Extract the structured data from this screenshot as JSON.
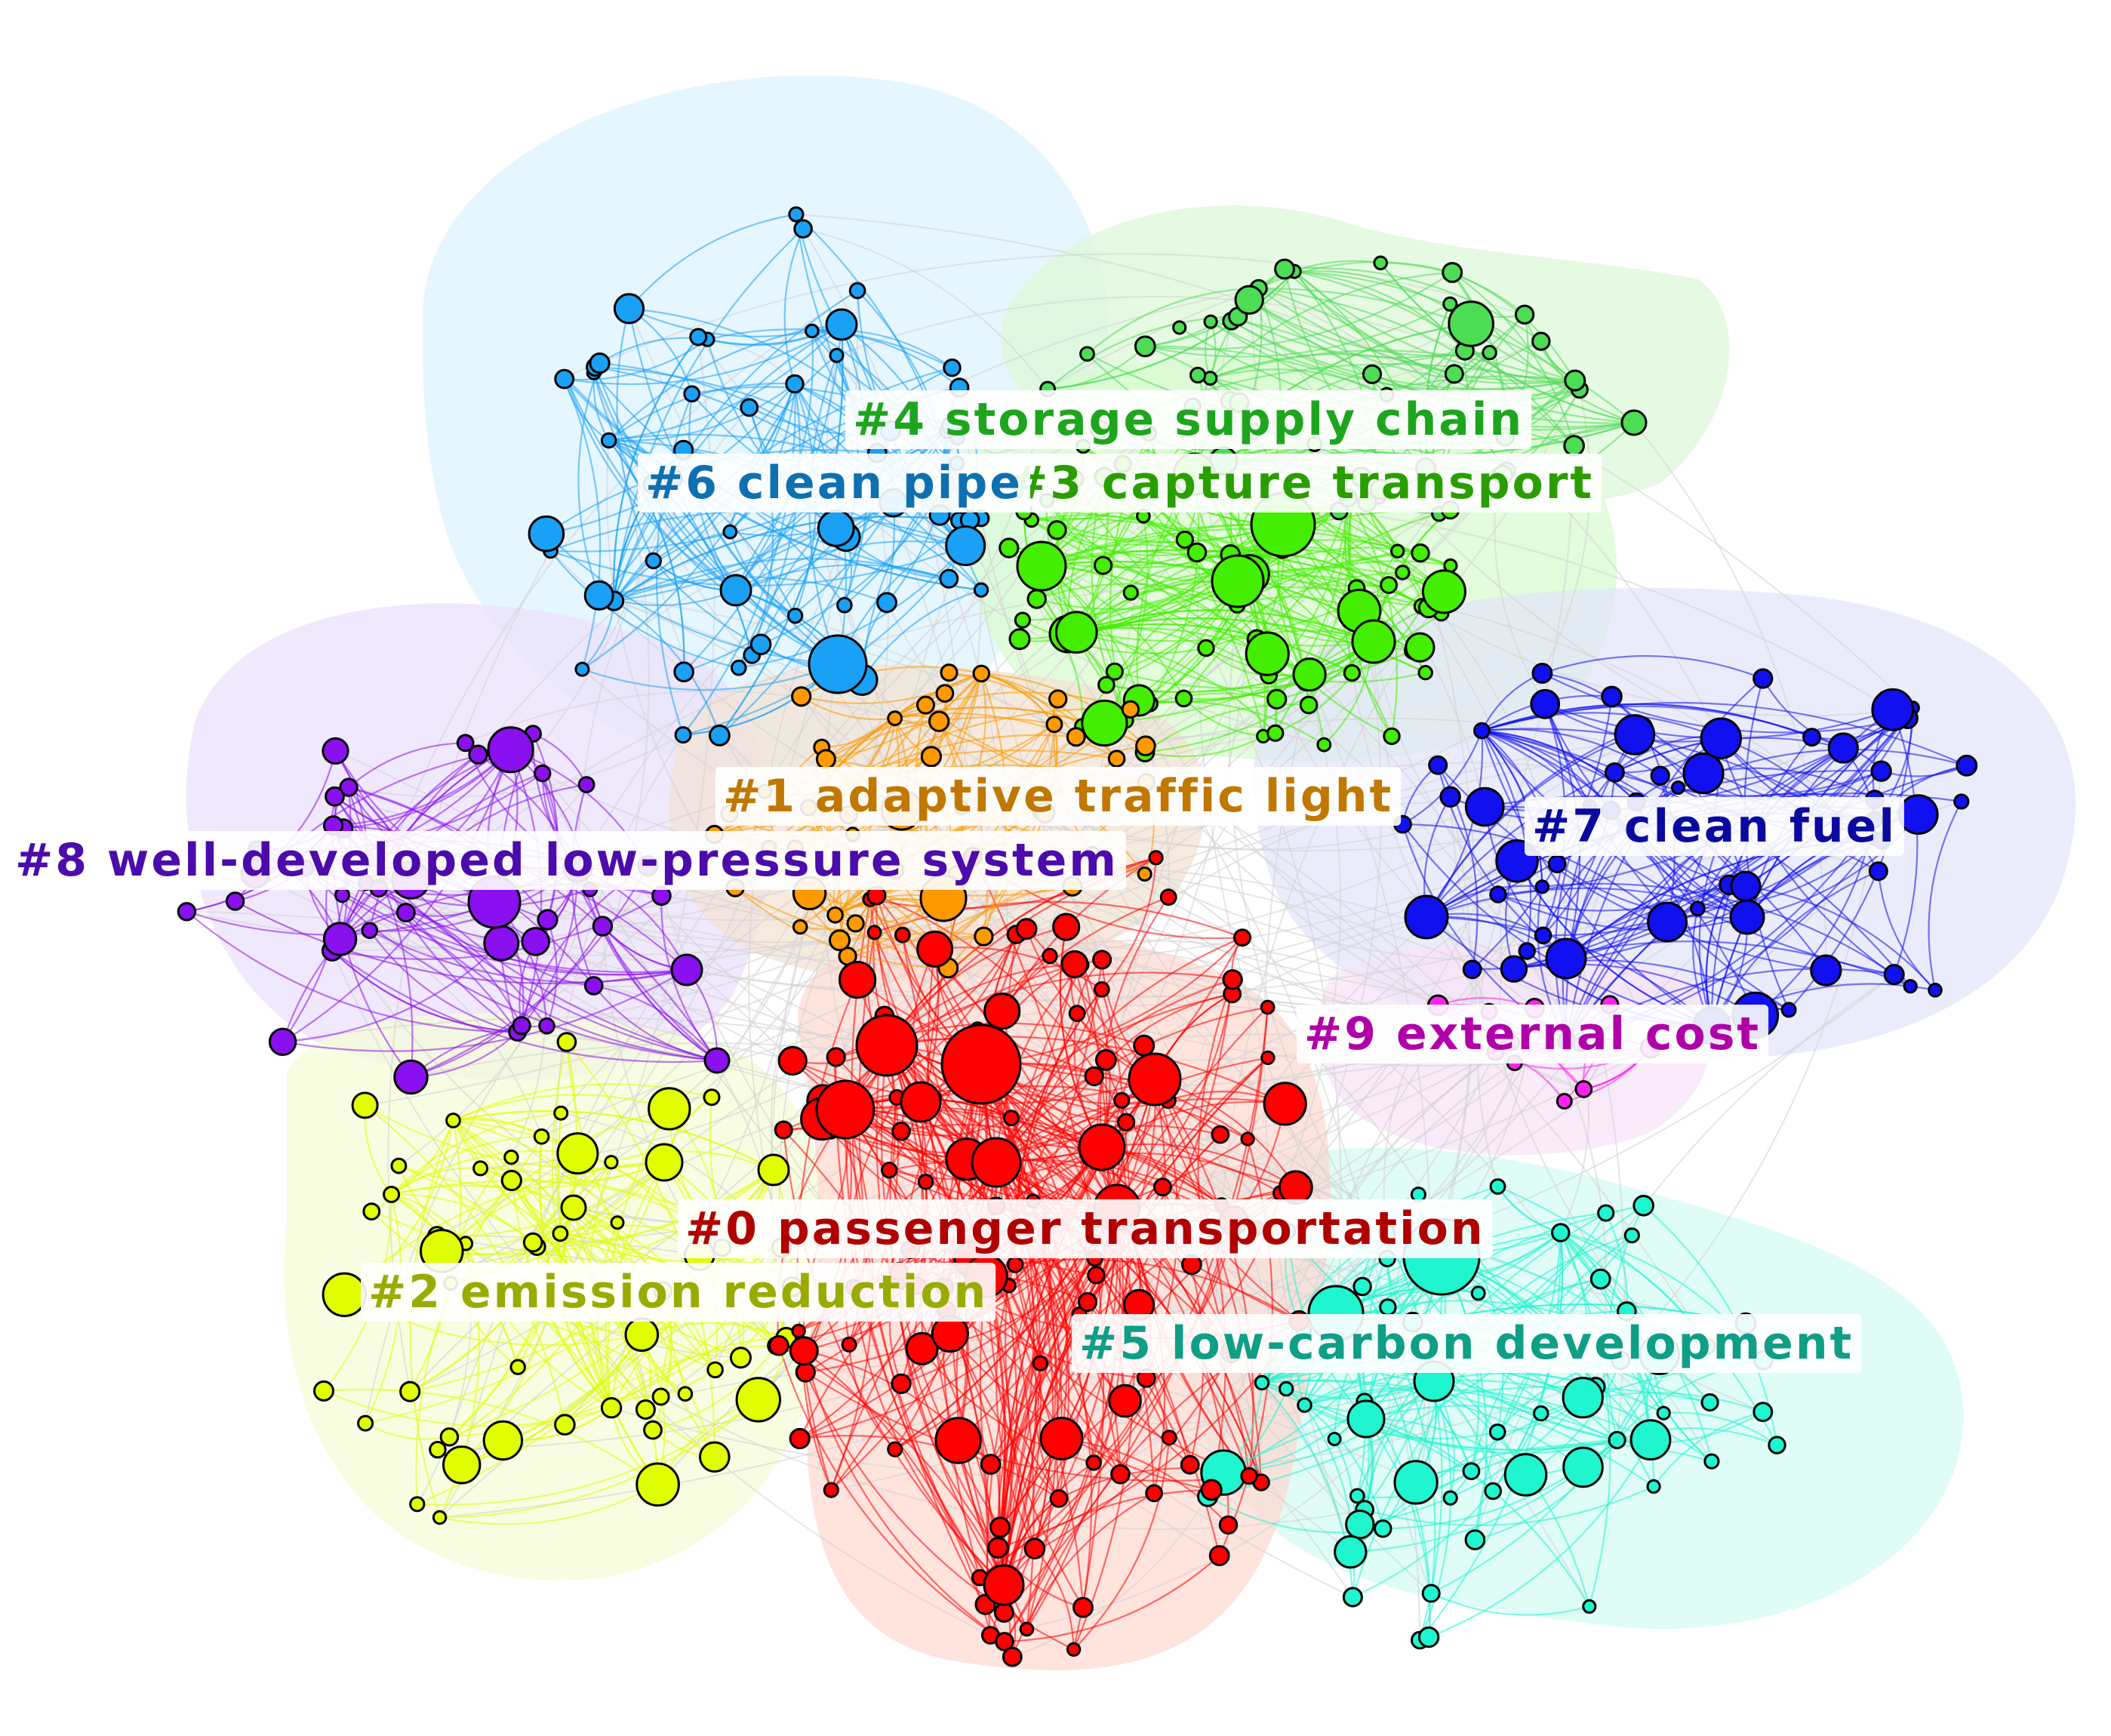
{
  "clusters": [
    {
      "id": 0,
      "label": "#0 passenger transportation",
      "node_color": "#ff0000",
      "label_color": "#b00000",
      "hull_color": "#ffd9d2"
    },
    {
      "id": 1,
      "label": "#1 adaptive traffic light",
      "node_color": "#ff9900",
      "label_color": "#c07800",
      "hull_color": "#f3e3d4"
    },
    {
      "id": 2,
      "label": "#2 emission reduction",
      "node_color": "#e0ff00",
      "label_color": "#9aab00",
      "hull_color": "#f6fcd8"
    },
    {
      "id": 3,
      "label": "#3 capture transport",
      "node_color": "#44ee00",
      "label_color": "#2a9e00",
      "hull_color": "#d8fbd0"
    },
    {
      "id": 4,
      "label": "#4 storage supply chain",
      "node_color": "#4ddd55",
      "label_color": "#1ea51e",
      "hull_color": "#def7d8"
    },
    {
      "id": 5,
      "label": "#5 low-carbon development",
      "node_color": "#1ff5cf",
      "label_color": "#0f9e86",
      "hull_color": "#d6fbf4"
    },
    {
      "id": 6,
      "label": "#6 clean pipe",
      "node_color": "#1aa0f5",
      "label_color": "#0f70b0",
      "hull_color": "#ddf3fd"
    },
    {
      "id": 7,
      "label": "#7 clean fuel",
      "node_color": "#1010f0",
      "label_color": "#0a0aa0",
      "hull_color": "#e3e6f9"
    },
    {
      "id": 8,
      "label": "#8 well-developed low-pressure system",
      "node_color": "#8a10f0",
      "label_color": "#4c0bab",
      "hull_color": "#ebe0fb"
    },
    {
      "id": 9,
      "label": "#9 external cost",
      "node_color": "#ff22ee",
      "label_color": "#b000a8",
      "hull_color": "#f7e4f7"
    }
  ],
  "edge_color": "#d3d3d3"
}
